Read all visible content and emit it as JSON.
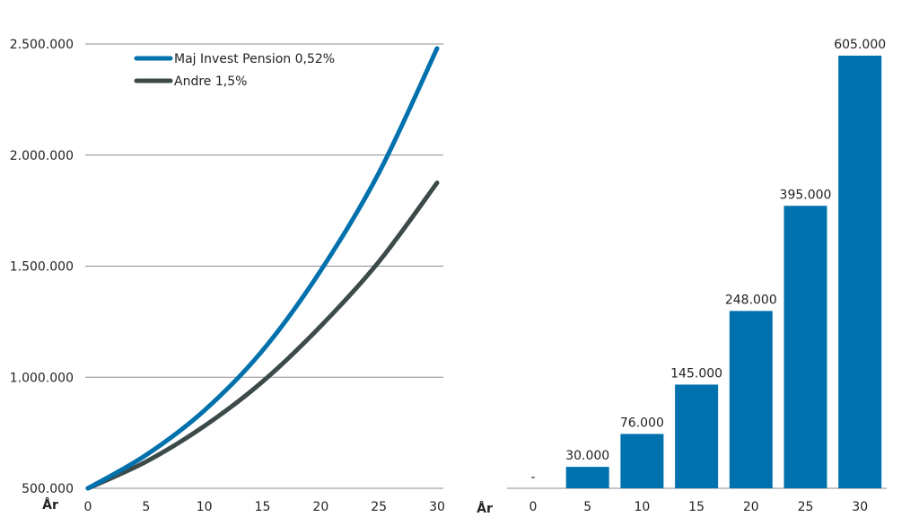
{
  "chart_data": [
    {
      "type": "line",
      "x": [
        0,
        5,
        10,
        15,
        20,
        25,
        30
      ],
      "xlabel": "År",
      "ylabel": "",
      "ylim": [
        500000,
        2500000
      ],
      "yticks": [
        "500.000",
        "1.000.000",
        "1.500.000",
        "2.000.000",
        "2.500.000"
      ],
      "ytick_values": [
        500000,
        1000000,
        1500000,
        2000000,
        2500000
      ],
      "xticks": [
        "0",
        "5",
        "10",
        "15",
        "20",
        "25",
        "30"
      ],
      "grid": true,
      "legend": "top-left",
      "series": [
        {
          "name": "Maj Invest Pension 0,52%",
          "color": "#0071ad",
          "values": [
            500000,
            650000,
            850000,
            1120000,
            1480000,
            1920000,
            2480000
          ]
        },
        {
          "name": "Andre 1,5%",
          "color": "#3d4a4a",
          "values": [
            500000,
            620000,
            780000,
            980000,
            1230000,
            1520000,
            1875000
          ]
        }
      ]
    },
    {
      "type": "bar",
      "xlabel": "År",
      "categories": [
        "0",
        "5",
        "10",
        "15",
        "20",
        "25",
        "30"
      ],
      "values": [
        0,
        30000,
        76000,
        145000,
        248000,
        395000,
        605000
      ],
      "data_labels": [
        "-",
        "30.000",
        "76.000",
        "145.000",
        "248.000",
        "395.000",
        "605.000"
      ],
      "ylim": [
        0,
        605000
      ],
      "color": "#0071ad"
    }
  ]
}
